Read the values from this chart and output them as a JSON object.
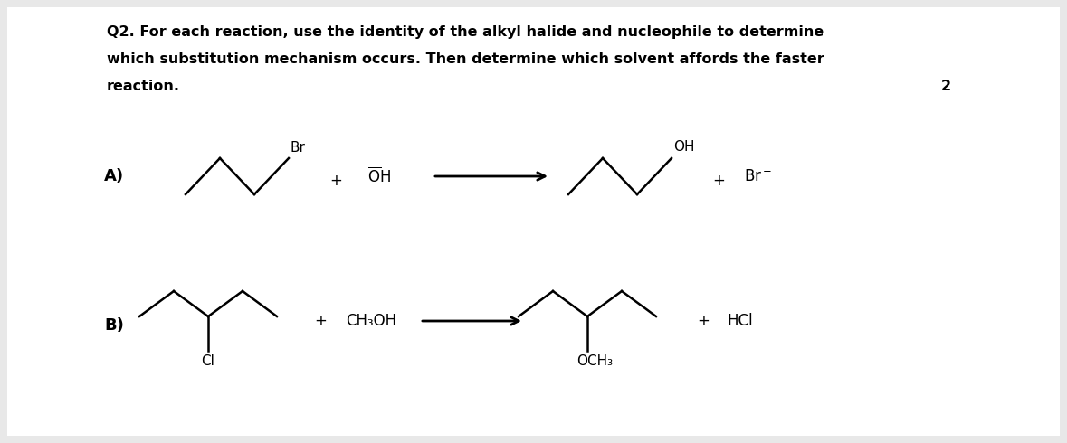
{
  "bg_color": "#e8e8e8",
  "inner_bg": "#ffffff",
  "title_line1": "Q2. For each reaction, use the identity of the alkyl halide and nucleophile to determine",
  "title_line2": "which substitution mechanism occurs. Then determine which solvent affords the faster",
  "title_line3": "reaction.",
  "number_2": "2",
  "label_A": "A)",
  "label_B": "B)",
  "font_size_title": 11.5,
  "font_size_label": 13,
  "font_size_chem": 11
}
